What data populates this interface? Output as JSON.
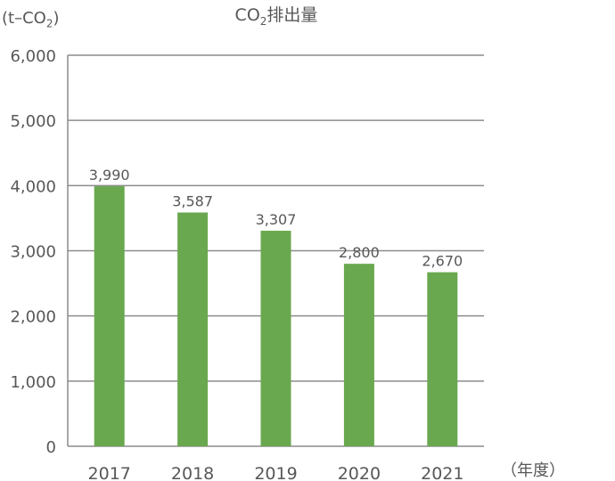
{
  "chart_data": {
    "type": "bar",
    "title": "CO₂排出量",
    "ylabel": "(t-CO₂)",
    "xlabel": "（年度）",
    "categories": [
      "2017",
      "2018",
      "2019",
      "2020",
      "2021"
    ],
    "values": [
      3990,
      3587,
      3307,
      2800,
      2670
    ],
    "value_labels": [
      "3,990",
      "3,587",
      "3,307",
      "2,800",
      "2,670"
    ],
    "yticks": [
      0,
      1000,
      2000,
      3000,
      4000,
      5000,
      6000
    ],
    "ytick_labels": [
      "0",
      "1,000",
      "2,000",
      "3,000",
      "4,000",
      "5,000",
      "6,000"
    ],
    "ylim": [
      0,
      6000
    ],
    "grid": true,
    "legend": "none",
    "colors": {
      "bar": "#6aa84f",
      "grid": "#8c8c8c",
      "text": "#595757"
    }
  },
  "title_parts": {
    "pre": "CO",
    "sub": "2",
    "post": "排出量"
  },
  "yunit_parts": {
    "pre": "(t–CO",
    "sub": "2",
    "post": ")"
  }
}
